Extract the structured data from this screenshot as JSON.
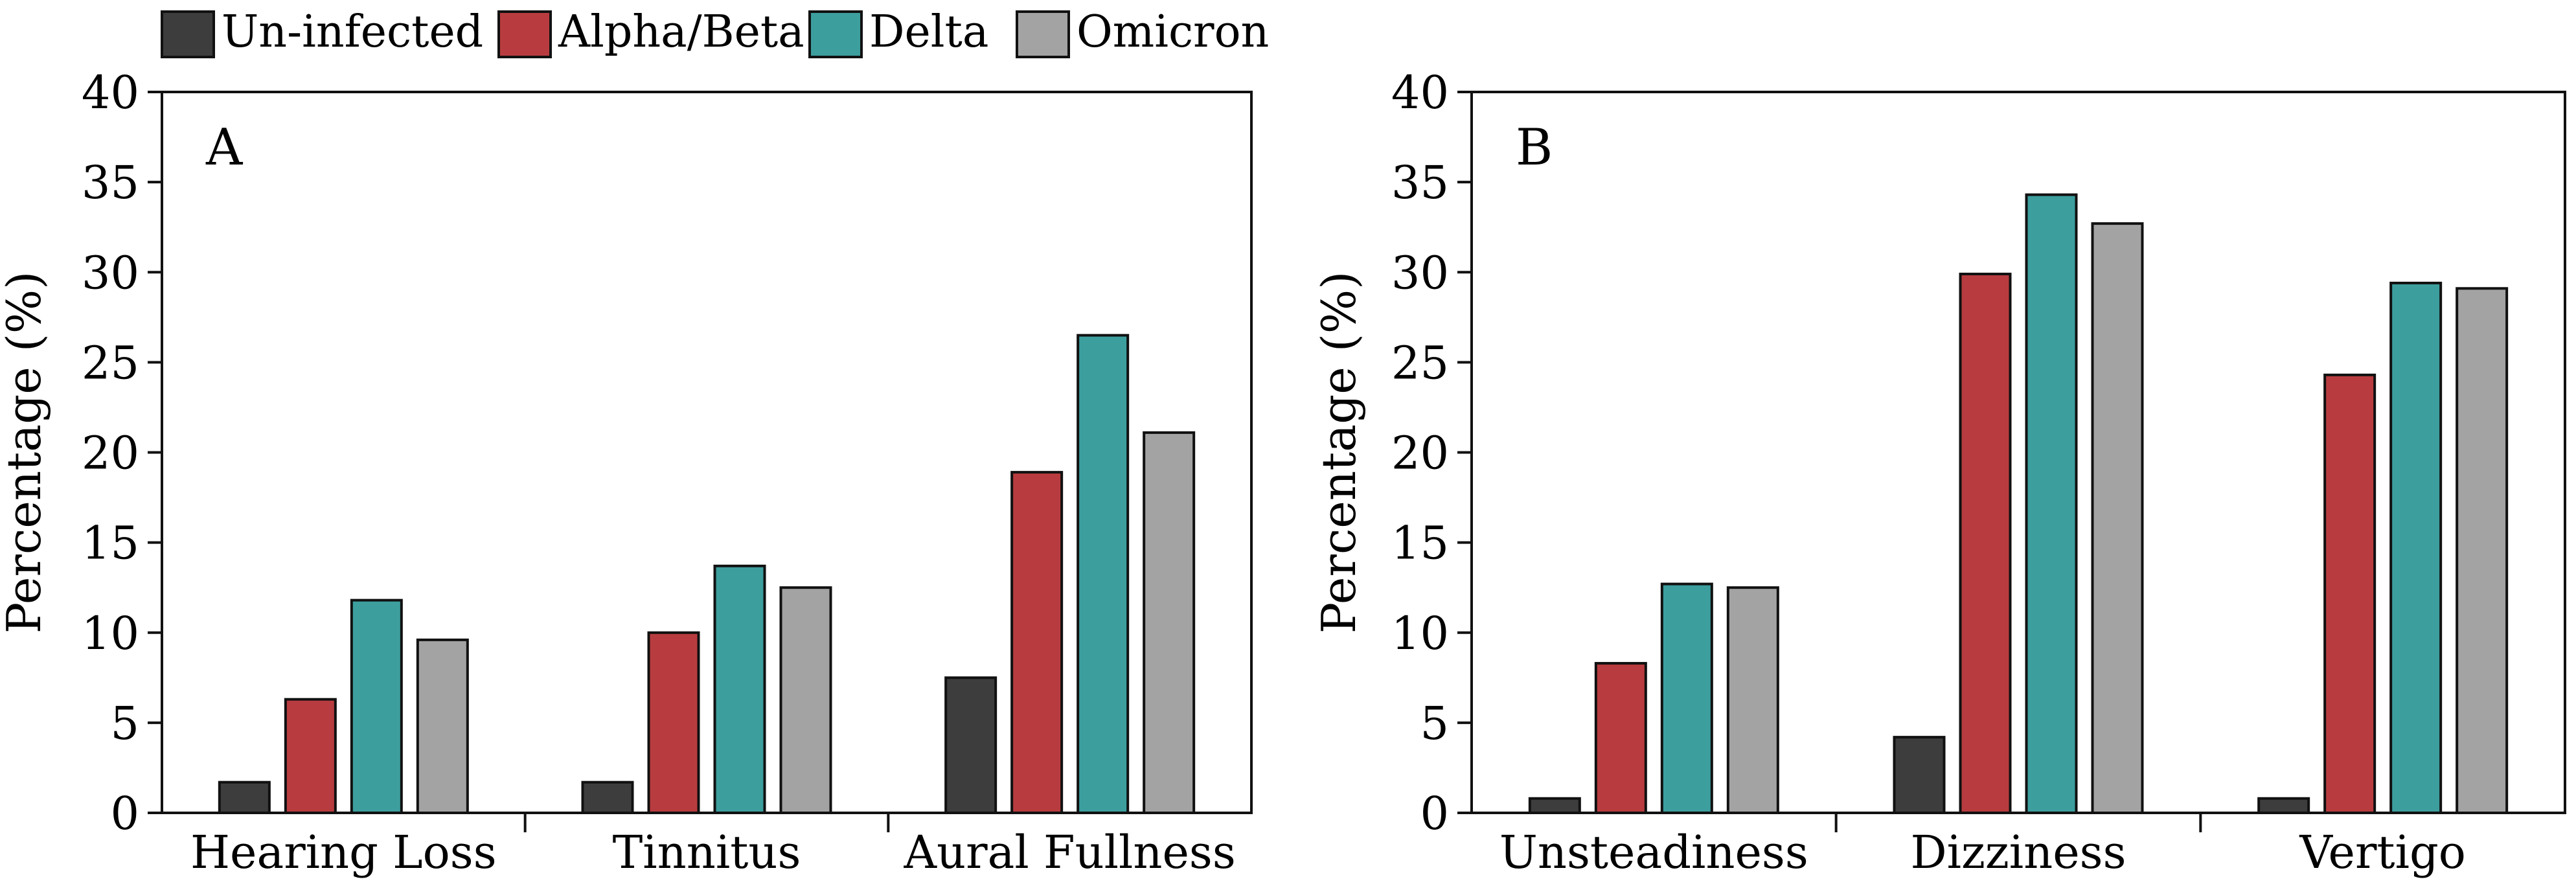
{
  "legend": {
    "items": [
      {
        "label": "Un-infected",
        "color": "#3d3d3d"
      },
      {
        "label": "Alpha/Beta",
        "color": "#b83c3f"
      },
      {
        "label": "Delta",
        "color": "#3d9e9e"
      },
      {
        "label": "Omicron",
        "color": "#a3a3a3"
      }
    ]
  },
  "chart_data": [
    {
      "type": "bar",
      "panel_label": "A",
      "title": "",
      "xlabel": "",
      "ylabel": "Percentage (%)",
      "ylim": [
        0,
        40
      ],
      "yticks": [
        "0",
        "5",
        "10",
        "15",
        "20",
        "25",
        "30",
        "35",
        "40"
      ],
      "categories": [
        "Hearing Loss",
        "Tinnitus",
        "Aural Fullness"
      ],
      "series": [
        {
          "name": "Un-infected",
          "values": [
            1.7,
            1.7,
            7.5
          ]
        },
        {
          "name": "Alpha/Beta",
          "values": [
            6.3,
            10.0,
            18.9
          ]
        },
        {
          "name": "Delta",
          "values": [
            11.8,
            13.7,
            26.5
          ]
        },
        {
          "name": "Omicron",
          "values": [
            9.6,
            12.5,
            21.1
          ]
        }
      ]
    },
    {
      "type": "bar",
      "panel_label": "B",
      "title": "",
      "xlabel": "",
      "ylabel": "Percentage (%)",
      "ylim": [
        0,
        40
      ],
      "yticks": [
        "0",
        "5",
        "10",
        "15",
        "20",
        "25",
        "30",
        "35",
        "40"
      ],
      "categories": [
        "Unsteadiness",
        "Dizziness",
        "Vertigo"
      ],
      "series": [
        {
          "name": "Un-infected",
          "values": [
            0.8,
            4.2,
            0.8
          ]
        },
        {
          "name": "Alpha/Beta",
          "values": [
            8.3,
            29.9,
            24.3
          ]
        },
        {
          "name": "Delta",
          "values": [
            12.7,
            34.3,
            29.4
          ]
        },
        {
          "name": "Omicron",
          "values": [
            12.5,
            32.7,
            29.1
          ]
        }
      ]
    }
  ]
}
